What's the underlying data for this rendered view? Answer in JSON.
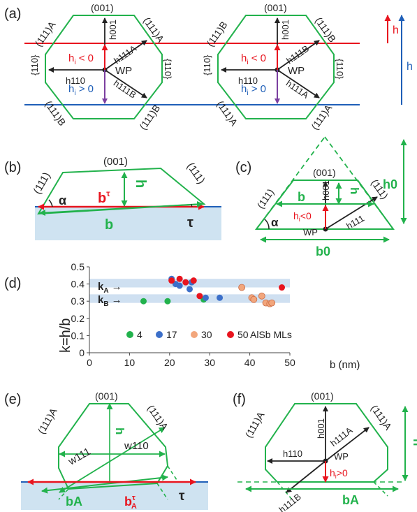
{
  "colors": {
    "green": "#22b24c",
    "red": "#e8141e",
    "blue": "#1f5fb8",
    "purple": "#7b3fa0",
    "dark": "#222222",
    "substrate": "#cfe3f1",
    "band": "#cfe0f1",
    "orange": "#f2a67c"
  },
  "a": {
    "label": "(a)",
    "left": {
      "top": "(001)",
      "ul": "(111)A",
      "ur": "(111)A",
      "l": "{110}",
      "r": "{110}",
      "ll": "(111)B",
      "lr": "(111)B",
      "h001": "h001",
      "h111a": "h111A",
      "h110": "h110",
      "h111b": "h111B",
      "wp": "WP",
      "hi_neg": "h",
      "hi_neg_sub": "i",
      "hi_neg_rest": " < 0",
      "hi_pos": "h",
      "hi_pos_sub": "i",
      "hi_pos_rest": " > 0"
    },
    "right": {
      "top": "(001)",
      "ul": "(111)B",
      "ur": "(111)B",
      "l": "{110}",
      "r": "{110}",
      "ll": "(111)A",
      "lr": "(111)A",
      "h001": "h001",
      "h111b": "h111B",
      "h110": "h110",
      "h111a": "h111A",
      "wp": "WP",
      "hi_neg": "h",
      "hi_neg_sub": "i",
      "hi_neg_rest": " < 0",
      "hi_pos": "h",
      "hi_pos_sub": "i",
      "hi_pos_rest": " > 0"
    },
    "h_red": "h",
    "h_blue": "h"
  },
  "b": {
    "label": "(b)",
    "top": "(001)",
    "left": "(111)",
    "right": "(111)",
    "alpha": "α",
    "h": "h",
    "btau": "b",
    "btau_sup": "τ",
    "b": "b",
    "tau": "τ"
  },
  "c": {
    "label": "(c)",
    "top": "(001)",
    "left": "(111)",
    "right": "(111)",
    "alpha": "α",
    "h": "h",
    "h001": "h001",
    "b": "b",
    "hi": "h",
    "hi_sub": "i",
    "hi_rest": "<0",
    "wp": "WP",
    "h111": "h111",
    "h0": "h0",
    "b0": "b0"
  },
  "d": {
    "label": "(d)",
    "ylabel": "k=h/b",
    "xlabel": "b (nm)",
    "kA": "kA",
    "kB": "kB",
    "legend_suffix": "AlSb MLs"
  },
  "chart_data": {
    "type": "scatter",
    "xlabel": "b (nm)",
    "ylabel": "k=h/b",
    "xlim": [
      0,
      50
    ],
    "ylim": [
      0,
      0.5
    ],
    "xticks": [
      "0",
      "10",
      "20",
      "30",
      "40",
      "50"
    ],
    "yticks": [
      "0",
      "0.1",
      "0.2",
      "0.3",
      "0.4",
      "0.5"
    ],
    "bands": [
      {
        "name": "kA",
        "center": 0.405
      },
      {
        "name": "kB",
        "center": 0.315
      }
    ],
    "series": [
      {
        "name": "4",
        "color": "#22b24c",
        "points": [
          [
            13.5,
            0.3
          ],
          [
            19.5,
            0.3
          ],
          [
            28.5,
            0.31
          ]
        ]
      },
      {
        "name": "17",
        "color": "#3c6fc9",
        "points": [
          [
            20.5,
            0.43
          ],
          [
            21.5,
            0.4
          ],
          [
            22.5,
            0.39
          ],
          [
            25,
            0.37
          ],
          [
            25.5,
            0.41
          ],
          [
            29,
            0.32
          ],
          [
            32.5,
            0.32
          ]
        ]
      },
      {
        "name": "30",
        "color": "#f2a67c",
        "points": [
          [
            38,
            0.38
          ],
          [
            40.5,
            0.32
          ],
          [
            41,
            0.31
          ],
          [
            43,
            0.33
          ],
          [
            44,
            0.29
          ],
          [
            45,
            0.285
          ],
          [
            45.5,
            0.29
          ]
        ]
      },
      {
        "name": "50",
        "color": "#e8141e",
        "points": [
          [
            20.5,
            0.42
          ],
          [
            22.5,
            0.43
          ],
          [
            24,
            0.41
          ],
          [
            26,
            0.42
          ],
          [
            27.5,
            0.33
          ],
          [
            48,
            0.38
          ]
        ]
      }
    ],
    "legend": "bottom"
  },
  "e": {
    "label": "(e)",
    "top": "(001)",
    "left": "(111)A",
    "right": "(111)A",
    "h": "h",
    "w111": "w111",
    "w110": "w110",
    "bA": "bA",
    "btauA": "b",
    "btauA_sup": "τ",
    "btauA_sub": "A",
    "tau": "τ"
  },
  "f": {
    "label": "(f)",
    "top": "(001)",
    "left": "(111)A",
    "right": "(111)A",
    "h001": "h001",
    "h111a": "h111A",
    "h110": "h110",
    "wp": "WP",
    "hi": "h",
    "hi_sub": "i",
    "hi_rest": ">0",
    "h111b": "h111B",
    "bA": "bA",
    "h": "h"
  }
}
